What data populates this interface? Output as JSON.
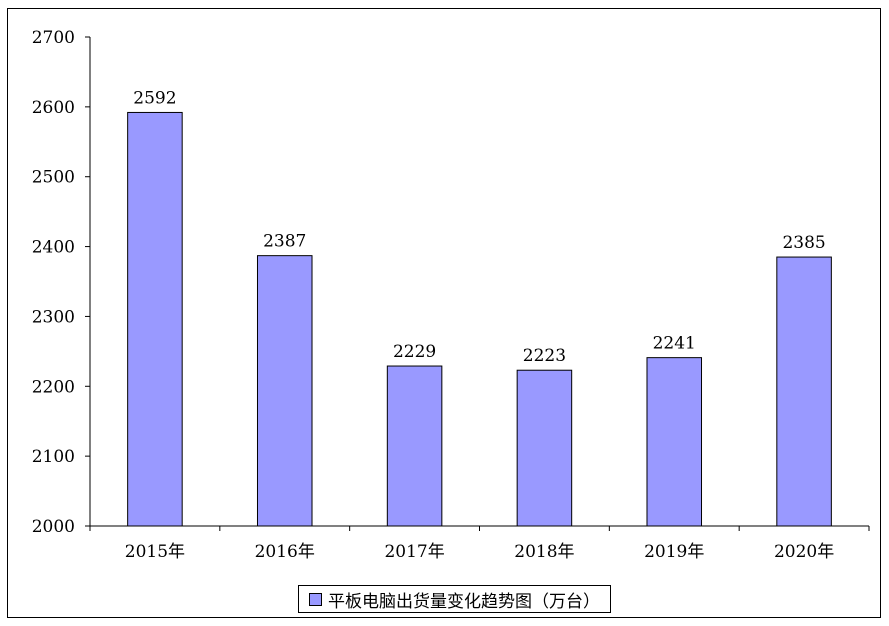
{
  "chart_data": {
    "type": "bar",
    "categories": [
      "2015年",
      "2016年",
      "2017年",
      "2018年",
      "2019年",
      "2020年"
    ],
    "series": [
      {
        "name": "平板电脑出货量变化趋势图（万台）",
        "values": [
          2592,
          2387,
          2229,
          2223,
          2241,
          2385
        ]
      }
    ],
    "ylim": [
      2000,
      2700
    ],
    "yticks": [
      "2000",
      "2100",
      "2200",
      "2300",
      "2400",
      "2500",
      "2600",
      "2700"
    ],
    "grid": false,
    "legend_position": "bottom",
    "bar_color": "#9999FF"
  }
}
